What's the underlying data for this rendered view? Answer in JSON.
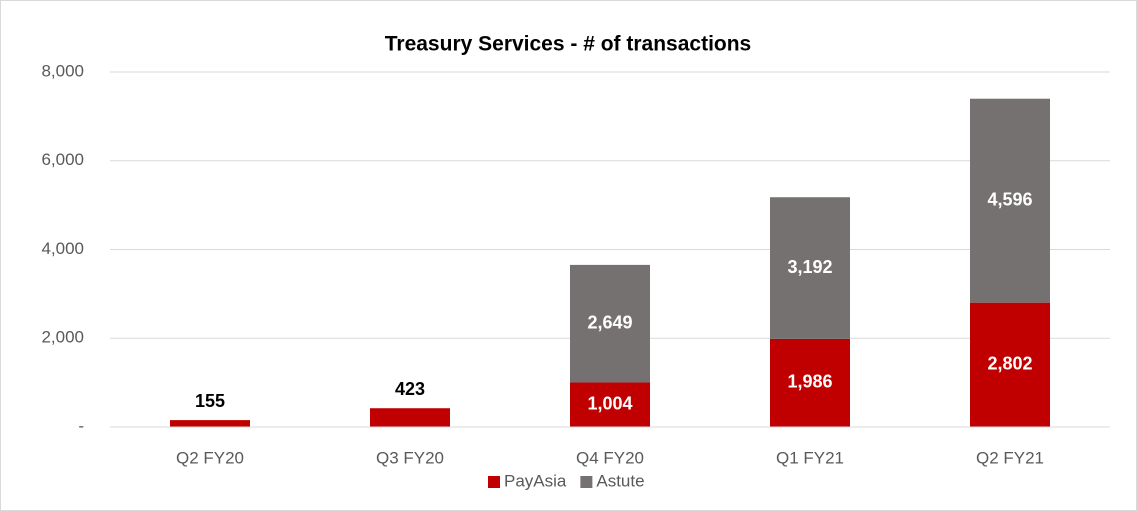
{
  "chart_data": {
    "type": "bar",
    "stacked": true,
    "title": "Treasury Services - # of transactions",
    "categories": [
      "Q2 FY20",
      "Q3 FY20",
      "Q4 FY20",
      "Q1 FY21",
      "Q2 FY21"
    ],
    "series": [
      {
        "name": "PayAsia",
        "color": "#c00000",
        "values": [
          155,
          423,
          1004,
          1986,
          2802
        ],
        "value_labels": [
          "155",
          "423",
          "1,004",
          "1,986",
          "2,802"
        ]
      },
      {
        "name": "Astute",
        "color": "#767171",
        "values": [
          null,
          null,
          2649,
          3192,
          4596
        ],
        "value_labels": [
          null,
          null,
          "2,649",
          "3,192",
          "4,596"
        ]
      }
    ],
    "ylim": [
      0,
      8000
    ],
    "yticks": [
      {
        "value": 0,
        "label": "-"
      },
      {
        "value": 2000,
        "label": "2,000"
      },
      {
        "value": 4000,
        "label": "4,000"
      },
      {
        "value": 6000,
        "label": "6,000"
      },
      {
        "value": 8000,
        "label": "8,000"
      }
    ],
    "grid": true,
    "legend": "bottom"
  }
}
